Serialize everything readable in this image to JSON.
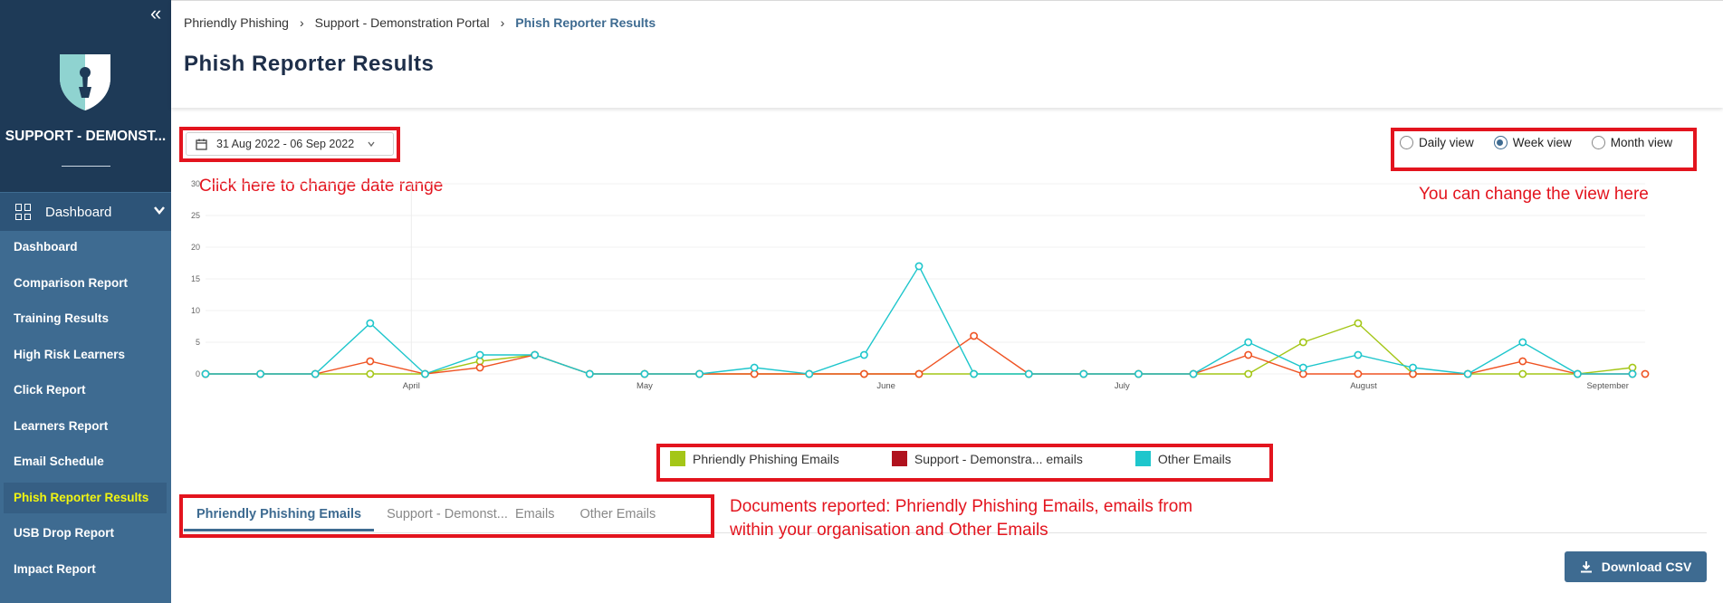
{
  "sidebar": {
    "org_name": "SUPPORT - DEMONST...",
    "section_label": "Dashboard",
    "items": [
      {
        "label": "Dashboard"
      },
      {
        "label": "Comparison Report"
      },
      {
        "label": "Training Results"
      },
      {
        "label": "High Risk Learners"
      },
      {
        "label": "Click Report"
      },
      {
        "label": "Learners Report"
      },
      {
        "label": "Email Schedule"
      },
      {
        "label": "Phish Reporter Results",
        "active": true
      },
      {
        "label": "USB Drop Report"
      },
      {
        "label": "Impact Report"
      }
    ]
  },
  "breadcrumb": [
    "Phriendly Phishing",
    "Support - Demonstration Portal",
    "Phish Reporter Results"
  ],
  "page_title": "Phish Reporter Results",
  "date_range": "31 Aug 2022 - 06 Sep 2022",
  "views": {
    "options": [
      "Daily view",
      "Week view",
      "Month view"
    ],
    "selected": "Week view"
  },
  "annotations": {
    "date": "Click here to change date range",
    "view": "You can change the view here",
    "tabs_line1": "Documents reported: Phriendly Phishing Emails, emails from",
    "tabs_line2": "within your organisation and Other Emails"
  },
  "colors": {
    "phriendly": "#a4c617",
    "support": "#b0121e",
    "support_line": "#ef5323",
    "other": "#1ec6cc",
    "accent": "#3e6b91",
    "annotation": "#e3141e"
  },
  "chart_data": {
    "type": "line",
    "ylim": [
      0,
      30
    ],
    "y_ticks": [
      0,
      5,
      10,
      15,
      20,
      25,
      30
    ],
    "x_tick_labels": [
      {
        "index": 3.75,
        "label": "April"
      },
      {
        "index": 8,
        "label": "May"
      },
      {
        "index": 12.4,
        "label": "June"
      },
      {
        "index": 16.7,
        "label": "July"
      },
      {
        "index": 21.1,
        "label": "August"
      },
      {
        "index": 25.55,
        "label": "September"
      }
    ],
    "x_count": 27,
    "series": [
      {
        "name": "Phriendly Phishing Emails",
        "color": "#a4c617",
        "values": [
          0,
          0,
          0,
          0,
          0,
          2,
          3,
          0,
          0,
          0,
          0,
          0,
          0,
          0,
          0,
          0,
          0,
          0,
          0,
          0,
          5,
          8,
          0,
          0,
          0,
          0,
          1
        ]
      },
      {
        "name": "Support - Demonstra... emails",
        "color": "#ef5323",
        "values": [
          0,
          0,
          0,
          2,
          0,
          1,
          3,
          0,
          0,
          0,
          0,
          0,
          0,
          0,
          6,
          0,
          0,
          0,
          0,
          3,
          0,
          0,
          0,
          0,
          2,
          0,
          0
        ]
      },
      {
        "name": "Other Emails",
        "color": "#1ec6cc",
        "values": [
          0,
          0,
          0,
          8,
          0,
          3,
          3,
          0,
          0,
          0,
          1,
          0,
          3,
          17,
          0,
          0,
          0,
          0,
          0,
          5,
          1,
          3,
          1,
          0,
          5,
          0,
          0
        ]
      }
    ]
  },
  "legend": [
    {
      "label": "Phriendly Phishing Emails",
      "color": "#a4c617"
    },
    {
      "label": "Support - Demonstra... emails",
      "color": "#b0121e"
    },
    {
      "label": "Other Emails",
      "color": "#1ec6cc"
    }
  ],
  "tabs": [
    {
      "label": "Phriendly Phishing Emails",
      "active": true
    },
    {
      "label": "Support - Demonst...  Emails"
    },
    {
      "label": "Other Emails"
    }
  ],
  "download_label": "Download CSV"
}
